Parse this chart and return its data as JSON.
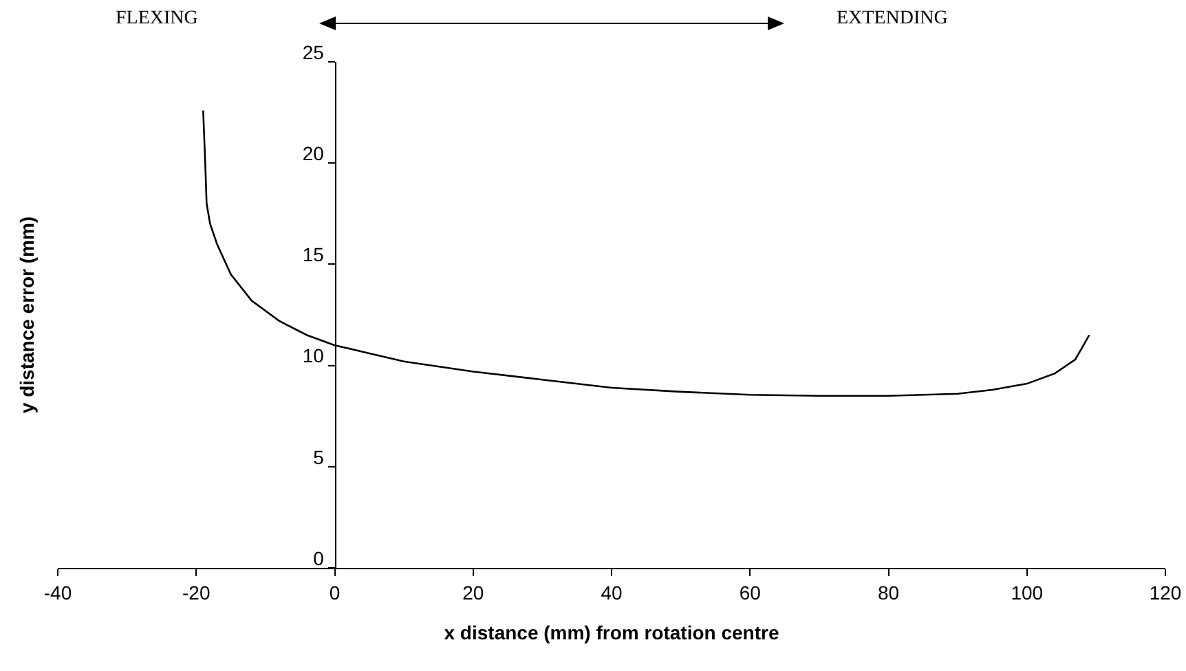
{
  "chart_data": {
    "type": "line",
    "xlabel": "x distance (mm) from rotation centre",
    "ylabel": "y distance error (mm)",
    "annotations": [
      "FLEXING",
      "EXTENDING"
    ],
    "x": [
      -19,
      -18.7,
      -18.5,
      -18,
      -17,
      -15,
      -12,
      -8,
      -4,
      0,
      5,
      10,
      20,
      30,
      40,
      50,
      60,
      70,
      80,
      90,
      95,
      100,
      104,
      107,
      109
    ],
    "series": [
      {
        "color": "#000000",
        "values": [
          22.6,
          20,
          18,
          17,
          16,
          14.5,
          13.2,
          12.2,
          11.5,
          11,
          10.6,
          10.2,
          9.7,
          9.3,
          8.9,
          8.7,
          8.55,
          8.5,
          8.5,
          8.6,
          8.8,
          9.1,
          9.6,
          10.3,
          11.5
        ]
      }
    ],
    "xlim": [
      -40,
      120
    ],
    "xticks": [
      -40,
      -20,
      0,
      20,
      40,
      60,
      80,
      100,
      120
    ],
    "ylim": [
      0,
      25
    ],
    "yticks": [
      0,
      5,
      10,
      15,
      20,
      25
    ],
    "line_style": "solid"
  }
}
